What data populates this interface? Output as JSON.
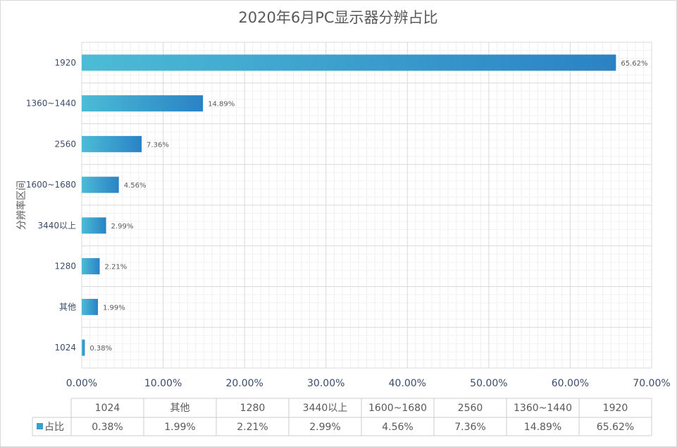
{
  "chart_data": {
    "type": "bar",
    "orientation": "horizontal",
    "title": "2020年6月PC显示器分辨占比",
    "ylabel": "分辨率区间",
    "xlabel": "",
    "categories": [
      "1920",
      "1360~1440",
      "2560",
      "1600~1680",
      "3440以上",
      "1280",
      "其他",
      "1024"
    ],
    "series": [
      {
        "name": "占比",
        "values": [
          65.62,
          14.89,
          7.36,
          4.56,
          2.99,
          2.21,
          1.99,
          0.38
        ],
        "labels": [
          "65.62%",
          "14.89%",
          "7.36%",
          "4.56%",
          "2.99%",
          "2.21%",
          "1.99%",
          "0.38%"
        ]
      }
    ],
    "xlim": [
      0,
      70
    ],
    "xticks": [
      0,
      10,
      20,
      30,
      40,
      50,
      60,
      70
    ],
    "xtick_labels": [
      "0.00%",
      "10.00%",
      "20.00%",
      "30.00%",
      "40.00%",
      "50.00%",
      "60.00%",
      "70.00%"
    ],
    "grid": true,
    "data_table": {
      "header": [
        "1024",
        "其他",
        "1280",
        "3440以上",
        "1600~1680",
        "2560",
        "1360~1440",
        "1920"
      ],
      "row_label": "占比",
      "row": [
        "0.38%",
        "1.99%",
        "2.21%",
        "2.99%",
        "4.56%",
        "7.36%",
        "14.89%",
        "65.62%"
      ]
    },
    "colors": {
      "bar_start": "#4cbcd6",
      "bar_end": "#2a82c4",
      "legend_key": "#3a9fcd",
      "title": "#595959",
      "tick": "#3b4c6b",
      "grid": "#d9d9d9"
    }
  }
}
